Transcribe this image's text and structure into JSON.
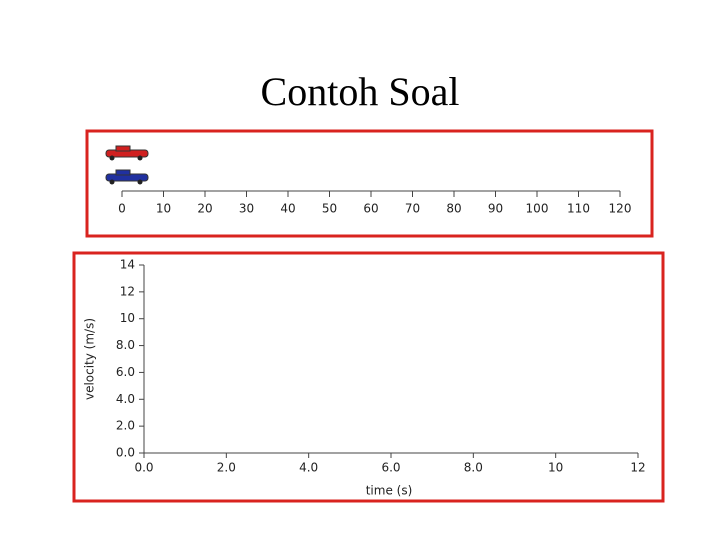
{
  "title": "Contoh Soal",
  "chart_data": [
    {
      "type": "ruler",
      "xlim": [
        0,
        120
      ],
      "xticks": [
        0,
        10,
        20,
        30,
        40,
        50,
        60,
        70,
        80,
        90,
        100,
        110,
        120
      ]
    },
    {
      "type": "line",
      "xlabel": "time (s)",
      "ylabel": "velocity (m/s)",
      "xlim": [
        0,
        12
      ],
      "ylim": [
        0,
        14
      ],
      "xticks": [
        {
          "value": 0,
          "label": "0.0"
        },
        {
          "value": 2,
          "label": "2.0"
        },
        {
          "value": 4,
          "label": "4.0"
        },
        {
          "value": 6,
          "label": "6.0"
        },
        {
          "value": 8,
          "label": "8.0"
        },
        10,
        12
      ],
      "yticks": [
        {
          "value": 0,
          "label": "0.0"
        },
        {
          "value": 2,
          "label": "2.0"
        },
        {
          "value": 4,
          "label": "4.0"
        },
        {
          "value": 6,
          "label": "6.0"
        },
        {
          "value": 8,
          "label": "8.0"
        },
        10,
        12,
        14
      ]
    }
  ]
}
